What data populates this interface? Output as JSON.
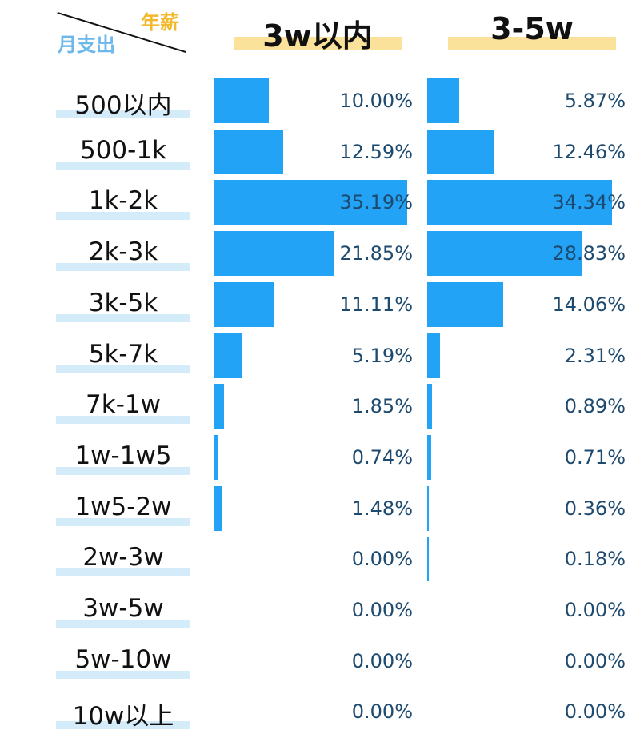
{
  "corner": {
    "row_axis_label": "月支出",
    "col_axis_label": "年薪",
    "row_axis_color": "#6db8ea",
    "col_axis_color": "#f2b92c"
  },
  "colors": {
    "bar": "#23a3f5",
    "value_text": "#1d4a6e",
    "title_highlight": "#fbe29a",
    "label_band": "#d4ecfa"
  },
  "chart_data": {
    "type": "bar",
    "orientation": "horizontal",
    "categories": [
      "500以内",
      "500-1k",
      "1k-2k",
      "2k-3k",
      "3k-5k",
      "5k-7k",
      "7k-1w",
      "1w-1w5",
      "1w5-2w",
      "2w-3w",
      "3w-5w",
      "5w-10w",
      "10w以上"
    ],
    "series": [
      {
        "name": "3w以内",
        "values": [
          10.0,
          12.59,
          35.19,
          21.85,
          11.11,
          5.19,
          1.85,
          0.74,
          1.48,
          0.0,
          0.0,
          0.0,
          0.0
        ],
        "labels": [
          "10.00%",
          "12.59%",
          "35.19%",
          "21.85%",
          "11.11%",
          "5.19%",
          "1.85%",
          "0.74%",
          "1.48%",
          "0.00%",
          "0.00%",
          "0.00%",
          "0.00%"
        ]
      },
      {
        "name": "3-5w",
        "values": [
          5.87,
          12.46,
          34.34,
          28.83,
          14.06,
          2.31,
          0.89,
          0.71,
          0.36,
          0.18,
          0.0,
          0.0,
          0.0
        ],
        "labels": [
          "5.87%",
          "12.46%",
          "34.34%",
          "28.83%",
          "14.06%",
          "2.31%",
          "0.89%",
          "0.71%",
          "0.36%",
          "0.18%",
          "0.00%",
          "0.00%",
          "0.00%"
        ]
      }
    ],
    "unit": "%",
    "xlim": [
      0,
      35.19
    ],
    "grid": false,
    "legend": "none"
  }
}
